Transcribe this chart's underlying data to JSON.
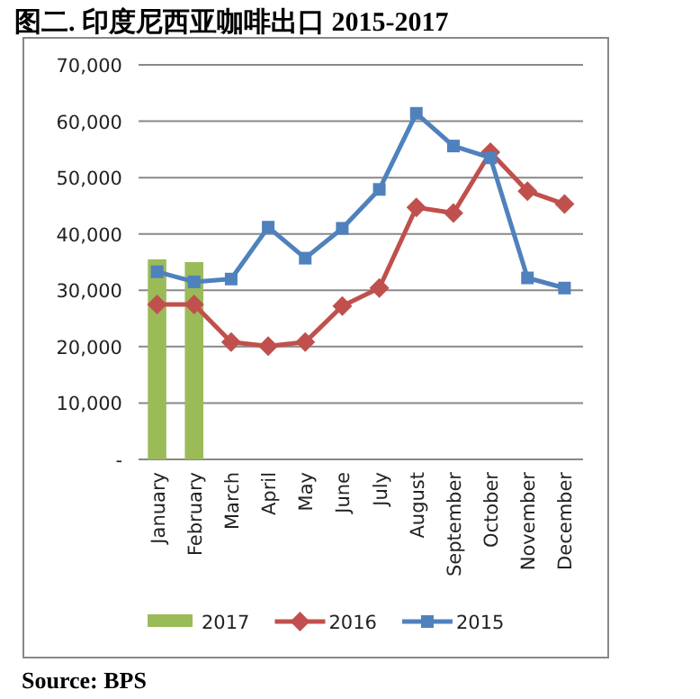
{
  "chart_data": {
    "type": "line",
    "title": "图二. 印度尼西亚咖啡出口 2015-2017",
    "categories": [
      "January",
      "February",
      "March",
      "April",
      "May",
      "June",
      "July",
      "August",
      "September",
      "October",
      "November",
      "December"
    ],
    "series": [
      {
        "name": "2017",
        "type": "bar",
        "color": "#9bbb59",
        "values": [
          35500,
          35000,
          null,
          null,
          null,
          null,
          null,
          null,
          null,
          null,
          null,
          null
        ]
      },
      {
        "name": "2016",
        "color": "#c0504d",
        "marker": "diamond",
        "values": [
          27500,
          27500,
          20800,
          20100,
          20800,
          27200,
          30400,
          44700,
          43700,
          54500,
          47600,
          45300
        ]
      },
      {
        "name": "2015",
        "color": "#4f81bd",
        "marker": "square",
        "values": [
          33300,
          31500,
          32000,
          41200,
          35700,
          41000,
          47900,
          61400,
          55600,
          53500,
          32200,
          30400
        ]
      }
    ],
    "ylim": [
      0,
      70000
    ],
    "yticks": [
      {
        "value": 0,
        "label": "-"
      },
      {
        "value": 10000,
        "label": "10,000"
      },
      {
        "value": 20000,
        "label": "20,000"
      },
      {
        "value": 30000,
        "label": "30,000"
      },
      {
        "value": 40000,
        "label": "40,000"
      },
      {
        "value": 50000,
        "label": "50,000"
      },
      {
        "value": 60000,
        "label": "60,000"
      },
      {
        "value": 70000,
        "label": "70,000"
      }
    ],
    "grid": "y",
    "legend": "bottom",
    "annotations": [
      "Source: BPS"
    ]
  }
}
